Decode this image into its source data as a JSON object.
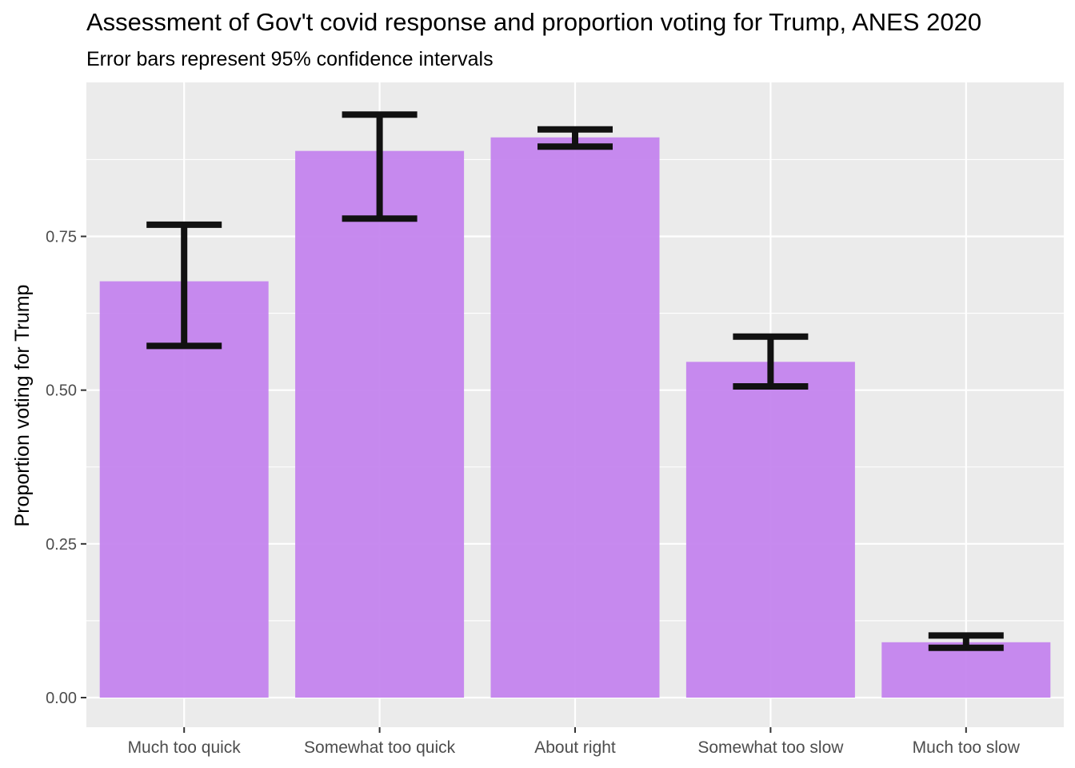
{
  "chart_data": {
    "type": "bar",
    "title": "Assessment of Gov't covid response and proportion voting for Trump, ANES 2020",
    "subtitle": "Error bars represent 95% confidence intervals",
    "xlabel": "",
    "ylabel": "Proportion voting for Trump",
    "categories": [
      "Much too quick",
      "Somewhat too quick",
      "About right",
      "Somewhat too slow",
      "Much too slow"
    ],
    "values": [
      0.677,
      0.889,
      0.911,
      0.546,
      0.09
    ],
    "error_lower": [
      0.572,
      0.779,
      0.896,
      0.506,
      0.081
    ],
    "error_upper": [
      0.769,
      0.948,
      0.924,
      0.587,
      0.101
    ],
    "ylim": [
      0,
      0.99
    ],
    "yticks": [
      0.0,
      0.25,
      0.5,
      0.75
    ],
    "ytick_labels": [
      "0.00",
      "0.25",
      "0.50",
      "0.75"
    ],
    "grid": true,
    "colors": {
      "bar": "#c280ee",
      "panel": "#ebebeb",
      "grid": "#ffffff",
      "errorbar": "#111111"
    }
  }
}
